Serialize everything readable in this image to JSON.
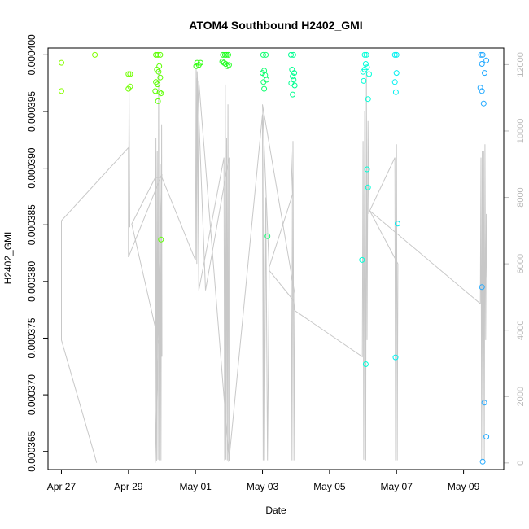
{
  "chart_data": {
    "type": "scatter",
    "title": "ATOM4 Southbound H2402_GMI",
    "xlabel": "Date",
    "ylabel": "H2402_GMI",
    "x_ticks": [
      "Apr 27",
      "Apr 29",
      "May 01",
      "May 03",
      "May 05",
      "May 07",
      "May 09"
    ],
    "xlim_days": [
      26.6,
      40.2
    ],
    "ylim": [
      0.0003634,
      0.0004006
    ],
    "y_ticks": [
      "0.000365",
      "0.000370",
      "0.000375",
      "0.000380",
      "0.000385",
      "0.000390",
      "0.000395",
      "0.000400"
    ],
    "y_tick_values": [
      0.000365,
      0.00037,
      0.000375,
      0.00038,
      0.000385,
      0.00039,
      0.000395,
      0.0004
    ],
    "secondary_ylim": [
      -200,
      12500
    ],
    "secondary_y_ticks": [
      "0",
      "2000",
      "4000",
      "6000",
      "8000",
      "10000",
      "12000"
    ],
    "secondary_y_tick_values": [
      0,
      2000,
      4000,
      6000,
      8000,
      10000,
      12000
    ],
    "points": [
      {
        "d": 27.0,
        "v": 0.0003993,
        "c": "#88ff00"
      },
      {
        "d": 27.0,
        "v": 0.0003968,
        "c": "#88ff00"
      },
      {
        "d": 28.0,
        "v": 0.0004,
        "c": "#80ff00"
      },
      {
        "d": 29.0,
        "v": 0.0003983,
        "c": "#70ff00"
      },
      {
        "d": 29.05,
        "v": 0.0003983,
        "c": "#70ff00"
      },
      {
        "d": 29.0,
        "v": 0.000397,
        "c": "#70ff00"
      },
      {
        "d": 29.05,
        "v": 0.0003972,
        "c": "#70ff00"
      },
      {
        "d": 29.82,
        "v": 0.0004,
        "c": "#5cff00"
      },
      {
        "d": 29.88,
        "v": 0.0004,
        "c": "#5cff00"
      },
      {
        "d": 29.95,
        "v": 0.0004,
        "c": "#5cff00"
      },
      {
        "d": 29.85,
        "v": 0.0003987,
        "c": "#5cff00"
      },
      {
        "d": 29.9,
        "v": 0.0003985,
        "c": "#5cff00"
      },
      {
        "d": 29.92,
        "v": 0.000399,
        "c": "#5cff00"
      },
      {
        "d": 29.95,
        "v": 0.000398,
        "c": "#5cff00"
      },
      {
        "d": 29.82,
        "v": 0.0003976,
        "c": "#5cff00"
      },
      {
        "d": 29.87,
        "v": 0.0003974,
        "c": "#5cff00"
      },
      {
        "d": 29.8,
        "v": 0.0003968,
        "c": "#5cff00"
      },
      {
        "d": 29.93,
        "v": 0.0003967,
        "c": "#5cff00"
      },
      {
        "d": 29.97,
        "v": 0.0003966,
        "c": "#5cff00"
      },
      {
        "d": 29.88,
        "v": 0.0003959,
        "c": "#5cff00"
      },
      {
        "d": 29.97,
        "v": 0.0003837,
        "c": "#5cff00"
      },
      {
        "d": 31.05,
        "v": 0.0003993,
        "c": "#30ff10"
      },
      {
        "d": 31.1,
        "v": 0.0003991,
        "c": "#30ff10"
      },
      {
        "d": 31.15,
        "v": 0.0003993,
        "c": "#30ff10"
      },
      {
        "d": 31.02,
        "v": 0.000399,
        "c": "#30ff10"
      },
      {
        "d": 31.82,
        "v": 0.0004,
        "c": "#20ff20"
      },
      {
        "d": 31.88,
        "v": 0.0004,
        "c": "#20ff20"
      },
      {
        "d": 31.92,
        "v": 0.0004,
        "c": "#20ff20"
      },
      {
        "d": 31.98,
        "v": 0.0004,
        "c": "#20ff20"
      },
      {
        "d": 31.85,
        "v": 0.0003993,
        "c": "#20ff20"
      },
      {
        "d": 31.9,
        "v": 0.0003992,
        "c": "#20ff20"
      },
      {
        "d": 31.95,
        "v": 0.000399,
        "c": "#20ff20"
      },
      {
        "d": 32.0,
        "v": 0.0003991,
        "c": "#20ff20"
      },
      {
        "d": 31.8,
        "v": 0.0003994,
        "c": "#20ff20"
      },
      {
        "d": 33.02,
        "v": 0.0004,
        "c": "#10ff70"
      },
      {
        "d": 33.1,
        "v": 0.0004,
        "c": "#10ff70"
      },
      {
        "d": 33.05,
        "v": 0.0003986,
        "c": "#10ff70"
      },
      {
        "d": 33.0,
        "v": 0.0003984,
        "c": "#10ff70"
      },
      {
        "d": 33.08,
        "v": 0.0003982,
        "c": "#10ff70"
      },
      {
        "d": 33.12,
        "v": 0.0003978,
        "c": "#10ff70"
      },
      {
        "d": 33.03,
        "v": 0.0003976,
        "c": "#10ff70"
      },
      {
        "d": 33.05,
        "v": 0.000397,
        "c": "#10ff70"
      },
      {
        "d": 33.15,
        "v": 0.000384,
        "c": "#10ff70"
      },
      {
        "d": 33.85,
        "v": 0.0004,
        "c": "#00ff90"
      },
      {
        "d": 33.92,
        "v": 0.0004,
        "c": "#00ff90"
      },
      {
        "d": 33.88,
        "v": 0.0003987,
        "c": "#00ff90"
      },
      {
        "d": 33.95,
        "v": 0.0003984,
        "c": "#00ff90"
      },
      {
        "d": 33.9,
        "v": 0.0003981,
        "c": "#00ff90"
      },
      {
        "d": 33.93,
        "v": 0.0003978,
        "c": "#00ff90"
      },
      {
        "d": 33.86,
        "v": 0.0003975,
        "c": "#00ff90"
      },
      {
        "d": 33.96,
        "v": 0.0003973,
        "c": "#00ff90"
      },
      {
        "d": 33.9,
        "v": 0.0003965,
        "c": "#00ff90"
      },
      {
        "d": 36.1,
        "v": 0.0004,
        "c": "#00ffd8"
      },
      {
        "d": 36.05,
        "v": 0.0004,
        "c": "#00ffd8"
      },
      {
        "d": 36.08,
        "v": 0.0003992,
        "c": "#00ffd8"
      },
      {
        "d": 36.12,
        "v": 0.0003989,
        "c": "#00ffd8"
      },
      {
        "d": 36.05,
        "v": 0.0003987,
        "c": "#00ffd8"
      },
      {
        "d": 36.0,
        "v": 0.0003985,
        "c": "#00ffd8"
      },
      {
        "d": 36.18,
        "v": 0.0003983,
        "c": "#00ffd8"
      },
      {
        "d": 36.02,
        "v": 0.0003977,
        "c": "#00ffd8"
      },
      {
        "d": 36.15,
        "v": 0.0003961,
        "c": "#00ffd8"
      },
      {
        "d": 36.12,
        "v": 0.0003899,
        "c": "#00ffd8"
      },
      {
        "d": 36.15,
        "v": 0.0003883,
        "c": "#00ffd8"
      },
      {
        "d": 35.97,
        "v": 0.0003819,
        "c": "#00ffd8"
      },
      {
        "d": 36.08,
        "v": 0.0003727,
        "c": "#00ffd8"
      },
      {
        "d": 36.95,
        "v": 0.0004,
        "c": "#00f0f0"
      },
      {
        "d": 37.0,
        "v": 0.0004,
        "c": "#00f0f0"
      },
      {
        "d": 37.0,
        "v": 0.0003984,
        "c": "#00f0f0"
      },
      {
        "d": 36.95,
        "v": 0.0003976,
        "c": "#00f0f0"
      },
      {
        "d": 36.98,
        "v": 0.0003967,
        "c": "#00f0f0"
      },
      {
        "d": 37.03,
        "v": 0.0003851,
        "c": "#00f0f0"
      },
      {
        "d": 36.97,
        "v": 0.0003733,
        "c": "#00f0f0"
      },
      {
        "d": 39.52,
        "v": 0.0004,
        "c": "#20a8ff"
      },
      {
        "d": 39.57,
        "v": 0.0004,
        "c": "#20a8ff"
      },
      {
        "d": 39.55,
        "v": 0.0003992,
        "c": "#20a8ff"
      },
      {
        "d": 39.68,
        "v": 0.0003995,
        "c": "#20a8ff"
      },
      {
        "d": 39.63,
        "v": 0.0003984,
        "c": "#20a8ff"
      },
      {
        "d": 39.5,
        "v": 0.0003971,
        "c": "#20a8ff"
      },
      {
        "d": 39.55,
        "v": 0.0003968,
        "c": "#20a8ff"
      },
      {
        "d": 39.6,
        "v": 0.0003957,
        "c": "#20a8ff"
      },
      {
        "d": 39.55,
        "v": 0.0003795,
        "c": "#20a8ff"
      },
      {
        "d": 39.62,
        "v": 0.0003693,
        "c": "#20a8ff"
      },
      {
        "d": 39.68,
        "v": 0.0003663,
        "c": "#20a8ff"
      },
      {
        "d": 39.57,
        "v": 0.0003641,
        "c": "#20a8ff"
      }
    ],
    "secondary_series": {
      "color": "#c8c8c8",
      "groups": [
        [
          [
            27.0,
            7300
          ],
          [
            27.0,
            3700
          ],
          [
            28.0,
            200
          ],
          [
            28.05,
            0
          ]
        ],
        [
          [
            27.0,
            7300
          ],
          [
            29.0,
            9500
          ],
          [
            29.0,
            6200
          ],
          [
            29.02,
            11200
          ],
          [
            29.04,
            7100
          ]
        ],
        [
          [
            29.0,
            6200
          ],
          [
            30.0,
            8700
          ],
          [
            29.8,
            0
          ],
          [
            29.82,
            9800
          ],
          [
            29.84,
            50
          ],
          [
            29.86,
            9400
          ],
          [
            29.88,
            100
          ],
          [
            29.9,
            11800
          ],
          [
            29.92,
            80
          ],
          [
            29.95,
            9000
          ],
          [
            29.97,
            80
          ],
          [
            29.99,
            10200
          ],
          [
            30.0,
            3200
          ],
          [
            29.1,
            7200
          ],
          [
            29.8,
            8600
          ]
        ],
        [
          [
            29.8,
            8600
          ],
          [
            30.0,
            8600
          ],
          [
            31.0,
            6100
          ],
          [
            31.02,
            11900
          ],
          [
            31.04,
            6000
          ],
          [
            31.05,
            11600
          ],
          [
            31.1,
            5200
          ],
          [
            31.85,
            9200
          ],
          [
            31.87,
            80
          ],
          [
            31.89,
            11400
          ],
          [
            31.91,
            100
          ],
          [
            31.93,
            9800
          ],
          [
            31.95,
            80
          ],
          [
            31.97,
            10800
          ],
          [
            31.99,
            60
          ],
          [
            32.0,
            80
          ],
          [
            31.1,
            11500
          ]
        ],
        [
          [
            31.1,
            11500
          ],
          [
            31.1,
            6600
          ],
          [
            31.05,
            11800
          ],
          [
            31.3,
            5200
          ],
          [
            32.0,
            9200
          ],
          [
            32.0,
            80
          ],
          [
            33.0,
            10500
          ],
          [
            33.02,
            80
          ],
          [
            33.04,
            10300
          ],
          [
            33.06,
            80
          ],
          [
            33.1,
            8000
          ],
          [
            33.15,
            80
          ],
          [
            33.2,
            5900
          ],
          [
            33.9,
            8100
          ]
        ],
        [
          [
            33.9,
            8100
          ],
          [
            33.85,
            9400
          ],
          [
            33.88,
            80
          ],
          [
            33.91,
            9700
          ],
          [
            33.94,
            80
          ],
          [
            33.96,
            5100
          ],
          [
            33.0,
            10800
          ],
          [
            33.2,
            5800
          ],
          [
            33.92,
            4900
          ],
          [
            33.95,
            4600
          ]
        ],
        [
          [
            33.95,
            4600
          ],
          [
            35.98,
            3200
          ],
          [
            36.0,
            9700
          ],
          [
            36.02,
            100
          ],
          [
            36.05,
            10600
          ],
          [
            36.08,
            80
          ],
          [
            36.1,
            11800
          ],
          [
            36.12,
            3700
          ],
          [
            36.15,
            10300
          ],
          [
            36.17,
            7500
          ],
          [
            36.2,
            7600
          ],
          [
            36.95,
            9200
          ],
          [
            36.97,
            80
          ],
          [
            37.0,
            9600
          ],
          [
            37.02,
            80
          ],
          [
            37.04,
            6000
          ],
          [
            36.2,
            7600
          ],
          [
            39.5,
            4800
          ]
        ],
        [
          [
            39.5,
            4800
          ],
          [
            39.52,
            9200
          ],
          [
            39.54,
            80
          ],
          [
            39.56,
            9400
          ],
          [
            39.58,
            100
          ],
          [
            39.6,
            9400
          ],
          [
            39.62,
            80
          ],
          [
            39.64,
            9600
          ],
          [
            39.66,
            3700
          ],
          [
            39.68,
            7500
          ],
          [
            39.7,
            5600
          ]
        ]
      ]
    }
  }
}
